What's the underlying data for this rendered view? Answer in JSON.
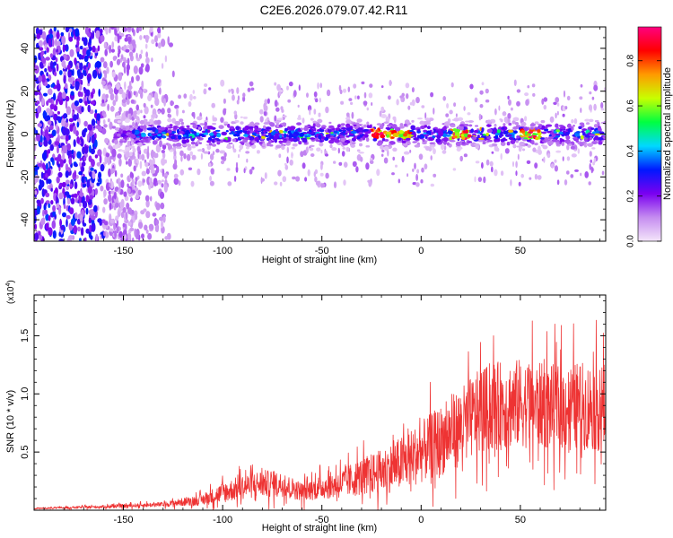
{
  "title": "C2E6.2026.079.07.42.R11",
  "chart_data": [
    {
      "type": "heatmap",
      "xlabel": "Height of straight line (km)",
      "ylabel": "Frequency (Hz)",
      "xlim": [
        -195,
        93
      ],
      "ylim": [
        -50,
        50
      ],
      "xticks": [
        -150,
        -100,
        -50,
        0,
        50
      ],
      "xtick_labels": [
        "-150",
        "-100",
        "-50",
        "0",
        "50"
      ],
      "yticks": [
        -40,
        -20,
        0,
        20,
        40
      ],
      "ytick_labels": [
        "-40",
        "-20",
        "0",
        "20",
        "40"
      ],
      "colorbar": {
        "label": "Normalized spectral amplitude",
        "range": [
          0.0,
          0.95
        ],
        "ticks": [
          0.0,
          0.2,
          0.4,
          0.6,
          0.8
        ],
        "tick_labels": [
          "0.0",
          "0.2",
          "0.4",
          "0.6",
          "0.8"
        ],
        "stops": [
          "#f4e6fa",
          "#c58cf0",
          "#7a00f0",
          "#0018ff",
          "#00d8ff",
          "#00ff40",
          "#c8ff00",
          "#ff9a00",
          "#ff0000",
          "#ff0080"
        ]
      },
      "band_center_hz": 0,
      "band_halfwidth_hz": 6,
      "peak_regions_km": [
        [
          -25,
          -5
        ],
        [
          15,
          25
        ],
        [
          50,
          60
        ]
      ]
    },
    {
      "type": "line",
      "xlabel": "Height of straight line (km)",
      "ylabel": "SNR (10 * v/v)",
      "y_multiplier": "(x10",
      "y_multiplier_exp": "4",
      "xlim": [
        -195,
        93
      ],
      "ylim": [
        0,
        18500
      ],
      "xticks": [
        -150,
        -100,
        -50,
        0,
        50
      ],
      "xtick_labels": [
        "-150",
        "-100",
        "-50",
        "0",
        "50"
      ],
      "yticks": [
        5000,
        10000,
        15000
      ],
      "ytick_labels": [
        "0.5",
        "1.0",
        "1.5"
      ],
      "line_color": "#ee3333",
      "envelope": {
        "x": [
          -195,
          -160,
          -130,
          -110,
          -100,
          -90,
          -80,
          -70,
          -60,
          -50,
          -40,
          -30,
          -20,
          -10,
          0,
          10,
          20,
          30,
          40,
          50,
          60,
          70,
          80,
          93
        ],
        "mean": [
          150,
          300,
          500,
          900,
          1500,
          2000,
          2300,
          2200,
          1600,
          2000,
          2300,
          2900,
          3300,
          4000,
          5000,
          6000,
          7200,
          8500,
          9000,
          9200,
          9000,
          8800,
          9000,
          8800
        ],
        "spread": [
          80,
          150,
          250,
          600,
          1100,
          1300,
          1500,
          1300,
          1000,
          1300,
          1600,
          2000,
          2400,
          2900,
          3300,
          3800,
          4200,
          4600,
          4800,
          4800,
          4600,
          4600,
          4700,
          4800
        ]
      }
    }
  ]
}
